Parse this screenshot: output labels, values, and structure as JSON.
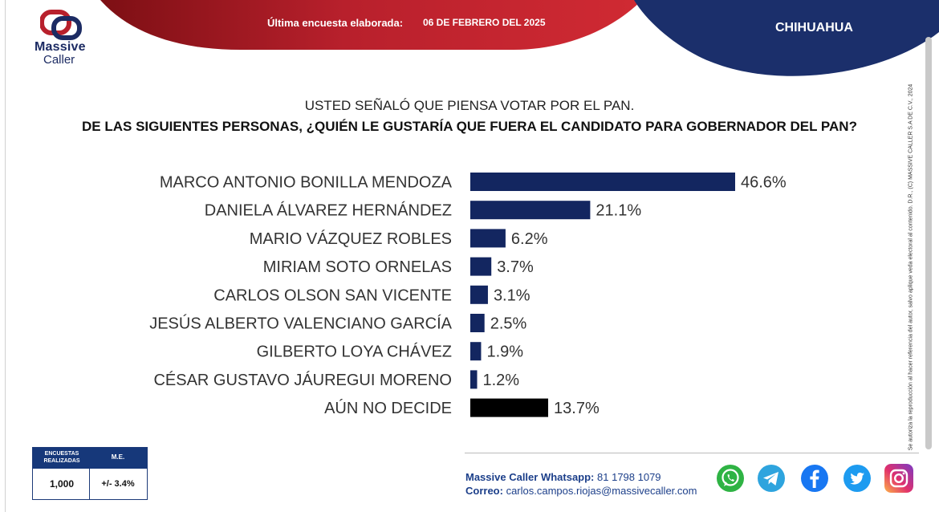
{
  "header": {
    "brand_line1": "Massive",
    "brand_line2": "Caller",
    "survey_label": "Última encuesta elaborada:",
    "survey_date": "06 DE FEBRERO DEL 2025",
    "state": "CHIHUAHUA"
  },
  "question": {
    "line1": "USTED SEÑALÓ QUE PIENSA VOTAR POR EL PAN.",
    "line2": "DE LAS SIGUIENTES PERSONAS, ¿QUIÉN LE GUSTARÍA QUE FUERA EL CANDIDATO PARA GOBERNADOR DEL PAN?"
  },
  "chart_data": {
    "type": "bar",
    "orientation": "horizontal",
    "categories": [
      "MARCO ANTONIO BONILLA MENDOZA",
      "DANIELA ÁLVAREZ HERNÁNDEZ",
      "MARIO VÁZQUEZ ROBLES",
      "MIRIAM SOTO ORNELAS",
      "CARLOS OLSON SAN VICENTE",
      "JESÚS ALBERTO VALENCIANO GARCÍA",
      "GILBERTO LOYA CHÁVEZ",
      "CÉSAR GUSTAVO JÁUREGUI MORENO",
      "AÚN NO DECIDE"
    ],
    "values": [
      46.6,
      21.1,
      6.2,
      3.7,
      3.1,
      2.5,
      1.9,
      1.2,
      13.7
    ],
    "value_labels": [
      "46.6%",
      "21.1%",
      "6.2%",
      "3.7%",
      "3.1%",
      "2.5%",
      "1.9%",
      "1.2%",
      "13.7%"
    ],
    "bar_colors": [
      "#132660",
      "#132660",
      "#132660",
      "#132660",
      "#132660",
      "#132660",
      "#132660",
      "#132660",
      "#000000"
    ],
    "xlim": [
      0,
      46.6
    ],
    "grid": false,
    "legend": "none"
  },
  "stats": {
    "surveys_header": "ENCUESTAS REALIZADAS",
    "me_header": "M.E.",
    "surveys_value": "1,000",
    "me_value": "+/- 3.4%"
  },
  "contact": {
    "whatsapp_label": "Massive Caller Whatsapp:",
    "whatsapp_number": "81 1798 1079",
    "email_label": "Correo:",
    "email": "carlos.campos.riojas@massivecaller.com"
  },
  "side_note": "Se autoriza la reproducción al hacer referencia del autor, salvo aplique veda electoral al contenido.   D.R., (C) MASSIVE CALLER S.A DE C.V., 2024",
  "social_icons": [
    "whatsapp-icon",
    "telegram-icon",
    "facebook-icon",
    "twitter-icon",
    "instagram-icon"
  ],
  "colors": {
    "red": "#b8202c",
    "navy": "#1b2f6b",
    "bar": "#132660"
  }
}
